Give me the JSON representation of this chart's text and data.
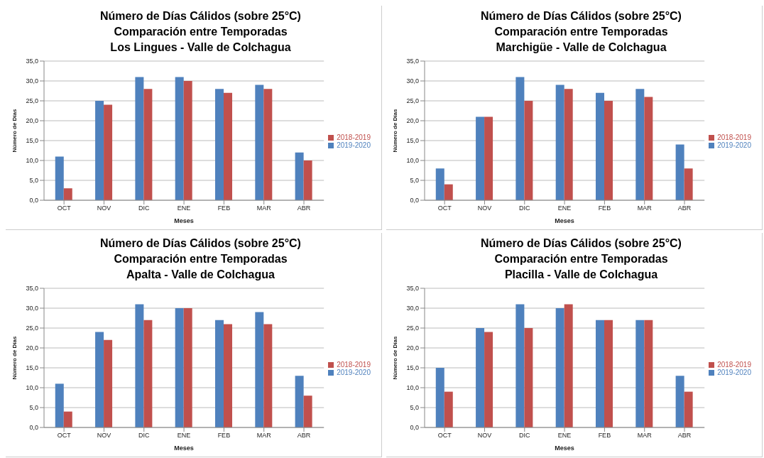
{
  "chart_data": [
    {
      "type": "bar",
      "title": "Número de Días Cálidos (sobre 25°C)\nComparación entre Temporadas\nLos Lingues - Valle de Colchagua",
      "xlabel": "Meses",
      "ylabel": "Número de Días",
      "categories": [
        "OCT",
        "NOV",
        "DIC",
        "ENE",
        "FEB",
        "MAR",
        "ABR"
      ],
      "series": [
        {
          "name": "2019-2020",
          "color": "#4f81bd",
          "values": [
            11,
            25,
            31,
            31,
            28,
            29,
            12
          ]
        },
        {
          "name": "2018-2019",
          "color": "#c0504d",
          "values": [
            3,
            24,
            28,
            30,
            27,
            28,
            10
          ]
        }
      ],
      "ylim": [
        0,
        35
      ],
      "yticks": [
        {
          "value": 0,
          "label": "0,0"
        },
        {
          "value": 5,
          "label": "5,0"
        },
        {
          "value": 10,
          "label": "10,0"
        },
        {
          "value": 15,
          "label": "15,0"
        },
        {
          "value": 20,
          "label": "20,0"
        },
        {
          "value": 25,
          "label": "25,0"
        },
        {
          "value": 30,
          "label": "30,0"
        },
        {
          "value": 35,
          "label": "35,0"
        }
      ],
      "grid": "y",
      "legend": "right"
    },
    {
      "type": "bar",
      "title": "Número de Días Cálidos (sobre 25°C)\nComparación entre Temporadas\nMarchigüe - Valle de Colchagua",
      "xlabel": "Meses",
      "ylabel": "Número de Días",
      "categories": [
        "OCT",
        "NOV",
        "DIC",
        "ENE",
        "FEB",
        "MAR",
        "ABR"
      ],
      "series": [
        {
          "name": "2019-2020",
          "color": "#4f81bd",
          "values": [
            8,
            21,
            31,
            29,
            27,
            28,
            14
          ]
        },
        {
          "name": "2018-2019",
          "color": "#c0504d",
          "values": [
            4,
            21,
            25,
            28,
            25,
            26,
            8
          ]
        }
      ],
      "ylim": [
        0,
        35
      ],
      "yticks": [
        {
          "value": 0,
          "label": "0,0"
        },
        {
          "value": 5,
          "label": "5,0"
        },
        {
          "value": 10,
          "label": "10,0"
        },
        {
          "value": 15,
          "label": "15,0"
        },
        {
          "value": 20,
          "label": "20,0"
        },
        {
          "value": 25,
          "label": "25,0"
        },
        {
          "value": 30,
          "label": "30,0"
        },
        {
          "value": 35,
          "label": "35,0"
        }
      ],
      "grid": "y",
      "legend": "right"
    },
    {
      "type": "bar",
      "title": "Número de Días Cálidos (sobre 25°C)\nComparación entre Temporadas\nApalta - Valle de Colchagua",
      "xlabel": "Meses",
      "ylabel": "Número de Días",
      "categories": [
        "OCT",
        "NOV",
        "DIC",
        "ENE",
        "FEB",
        "MAR",
        "ABR"
      ],
      "series": [
        {
          "name": "2019-2020",
          "color": "#4f81bd",
          "values": [
            11,
            24,
            31,
            30,
            27,
            29,
            13
          ]
        },
        {
          "name": "2018-2019",
          "color": "#c0504d",
          "values": [
            4,
            22,
            27,
            30,
            26,
            26,
            8
          ]
        }
      ],
      "ylim": [
        0,
        35
      ],
      "yticks": [
        {
          "value": 0,
          "label": "0,0"
        },
        {
          "value": 5,
          "label": "5,0"
        },
        {
          "value": 10,
          "label": "10,0"
        },
        {
          "value": 15,
          "label": "15,0"
        },
        {
          "value": 20,
          "label": "20,0"
        },
        {
          "value": 25,
          "label": "25,0"
        },
        {
          "value": 30,
          "label": "30,0"
        },
        {
          "value": 35,
          "label": "35,0"
        }
      ],
      "grid": "y",
      "legend": "right"
    },
    {
      "type": "bar",
      "title": "Número de Días Cálidos (sobre 25°C)\nComparación entre Temporadas\nPlacilla - Valle de Colchagua",
      "xlabel": "Meses",
      "ylabel": "Número de Días",
      "categories": [
        "OCT",
        "NOV",
        "DIC",
        "ENE",
        "FEB",
        "MAR",
        "ABR"
      ],
      "series": [
        {
          "name": "2019-2020",
          "color": "#4f81bd",
          "values": [
            15,
            25,
            31,
            30,
            27,
            27,
            13
          ]
        },
        {
          "name": "2018-2019",
          "color": "#c0504d",
          "values": [
            9,
            24,
            25,
            31,
            27,
            27,
            9
          ]
        }
      ],
      "ylim": [
        0,
        35
      ],
      "yticks": [
        {
          "value": 0,
          "label": "0,0"
        },
        {
          "value": 5,
          "label": "5,0"
        },
        {
          "value": 10,
          "label": "10,0"
        },
        {
          "value": 15,
          "label": "15,0"
        },
        {
          "value": 20,
          "label": "20,0"
        },
        {
          "value": 25,
          "label": "25,0"
        },
        {
          "value": 30,
          "label": "30,0"
        },
        {
          "value": 35,
          "label": "35,0"
        }
      ],
      "grid": "y",
      "legend": "right"
    }
  ]
}
